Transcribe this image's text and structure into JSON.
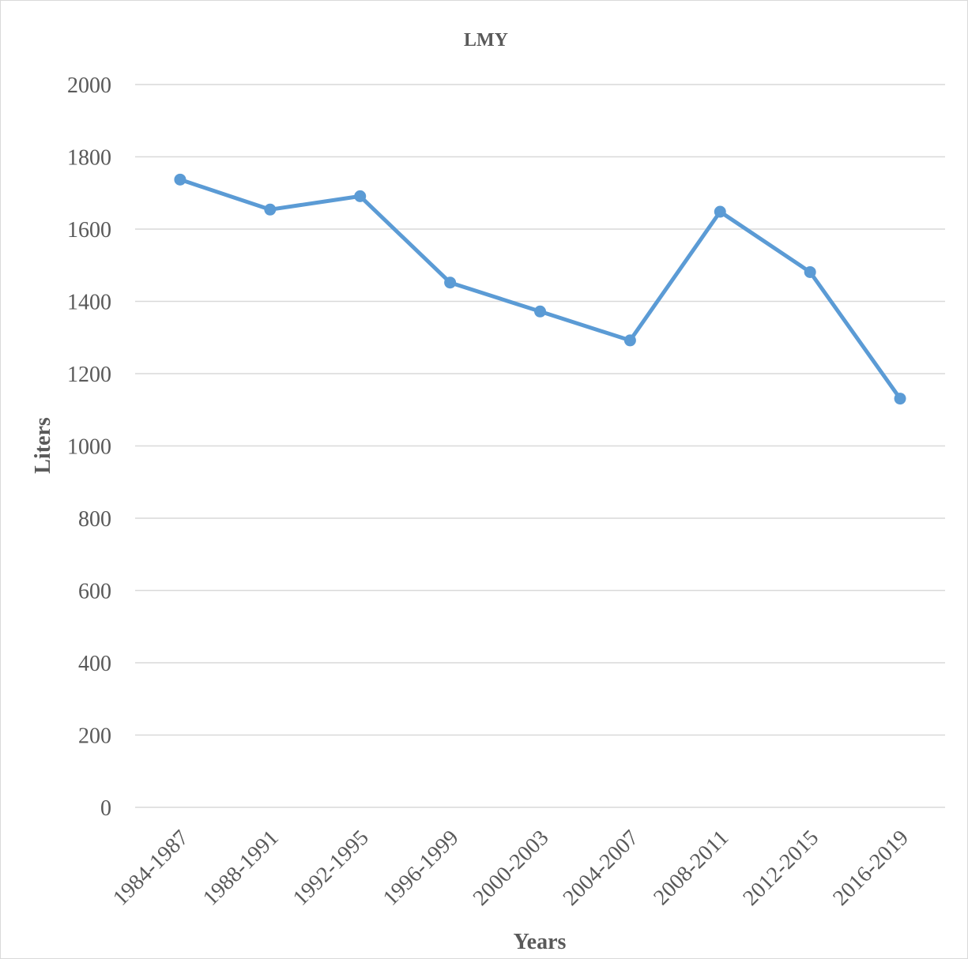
{
  "chart_data": {
    "type": "line",
    "title": "LMY",
    "xlabel": "Years",
    "ylabel": "Liters",
    "categories": [
      "1984-1987",
      "1988-1991",
      "1992-1995",
      "1996-1999",
      "2000-2003",
      "2004-2007",
      "2008-2011",
      "2012-2015",
      "2016-2019"
    ],
    "series": [
      {
        "values": [
          1737,
          1654,
          1691,
          1452,
          1372,
          1292,
          1648,
          1481,
          1131
        ]
      }
    ],
    "ylim": [
      0,
      2000
    ],
    "yticks": [
      "0",
      "200",
      "400",
      "600",
      "800",
      "1000",
      "1200",
      "1400",
      "1600",
      "1800",
      "2000"
    ],
    "grid": true,
    "legend": "none",
    "colors": {
      "series": "#5b9bd5",
      "grid": "#d9d9d9",
      "text": "#595959"
    }
  }
}
